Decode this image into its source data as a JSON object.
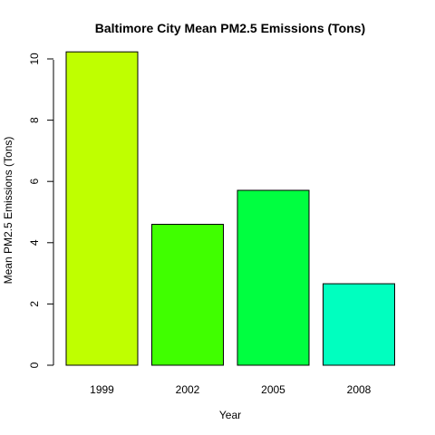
{
  "chart_data": {
    "type": "bar",
    "title": "Baltimore City Mean PM2.5 Emissions (Tons)",
    "xlabel": "Year",
    "ylabel": "Mean PM2.5 Emissions (Tons)",
    "categories": [
      "1999",
      "2002",
      "2005",
      "2008"
    ],
    "values": [
      10.23,
      4.6,
      5.71,
      2.66
    ],
    "colors": [
      "#BFFF00",
      "#40FF00",
      "#00FF40",
      "#00FFBF"
    ],
    "ylim": [
      0,
      10.5
    ],
    "yticks": [
      0,
      2,
      4,
      6,
      8,
      10
    ],
    "grid": false,
    "legend": "none"
  }
}
